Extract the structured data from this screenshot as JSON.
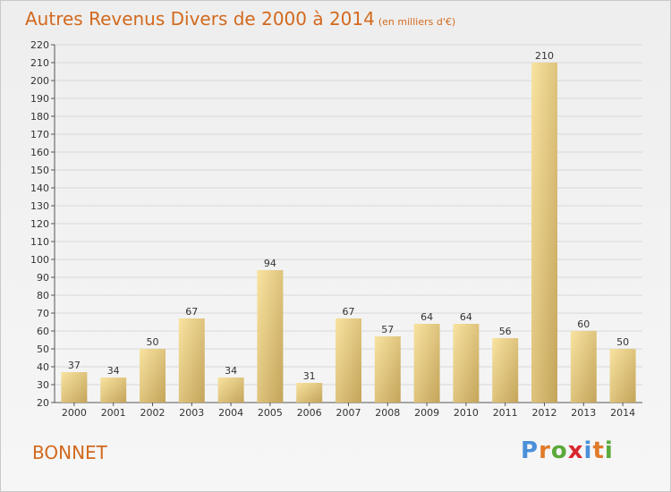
{
  "header": {
    "title": "Autres Revenus Divers de 2000 à 2014",
    "subtitle": "(en milliers d'€)"
  },
  "footer": {
    "commune": "BONNET",
    "logo_text": "Proxiti"
  },
  "colors": {
    "title": "#d2691e",
    "bar_light": "#f5dc93",
    "bar_dark": "#c8aa5e",
    "grid": "#d8d8d8"
  },
  "chart_data": {
    "type": "bar",
    "title": "Autres Revenus Divers de 2000 à 2014",
    "xlabel": "",
    "ylabel": "",
    "categories": [
      "2000",
      "2001",
      "2002",
      "2003",
      "2004",
      "2005",
      "2006",
      "2007",
      "2008",
      "2009",
      "2010",
      "2011",
      "2012",
      "2013",
      "2014"
    ],
    "values": [
      37,
      34,
      50,
      67,
      34,
      94,
      31,
      67,
      57,
      64,
      64,
      56,
      210,
      60,
      50
    ],
    "ylim": [
      20,
      220
    ],
    "ytick_step": 10,
    "grid": true,
    "data_labels": true
  }
}
